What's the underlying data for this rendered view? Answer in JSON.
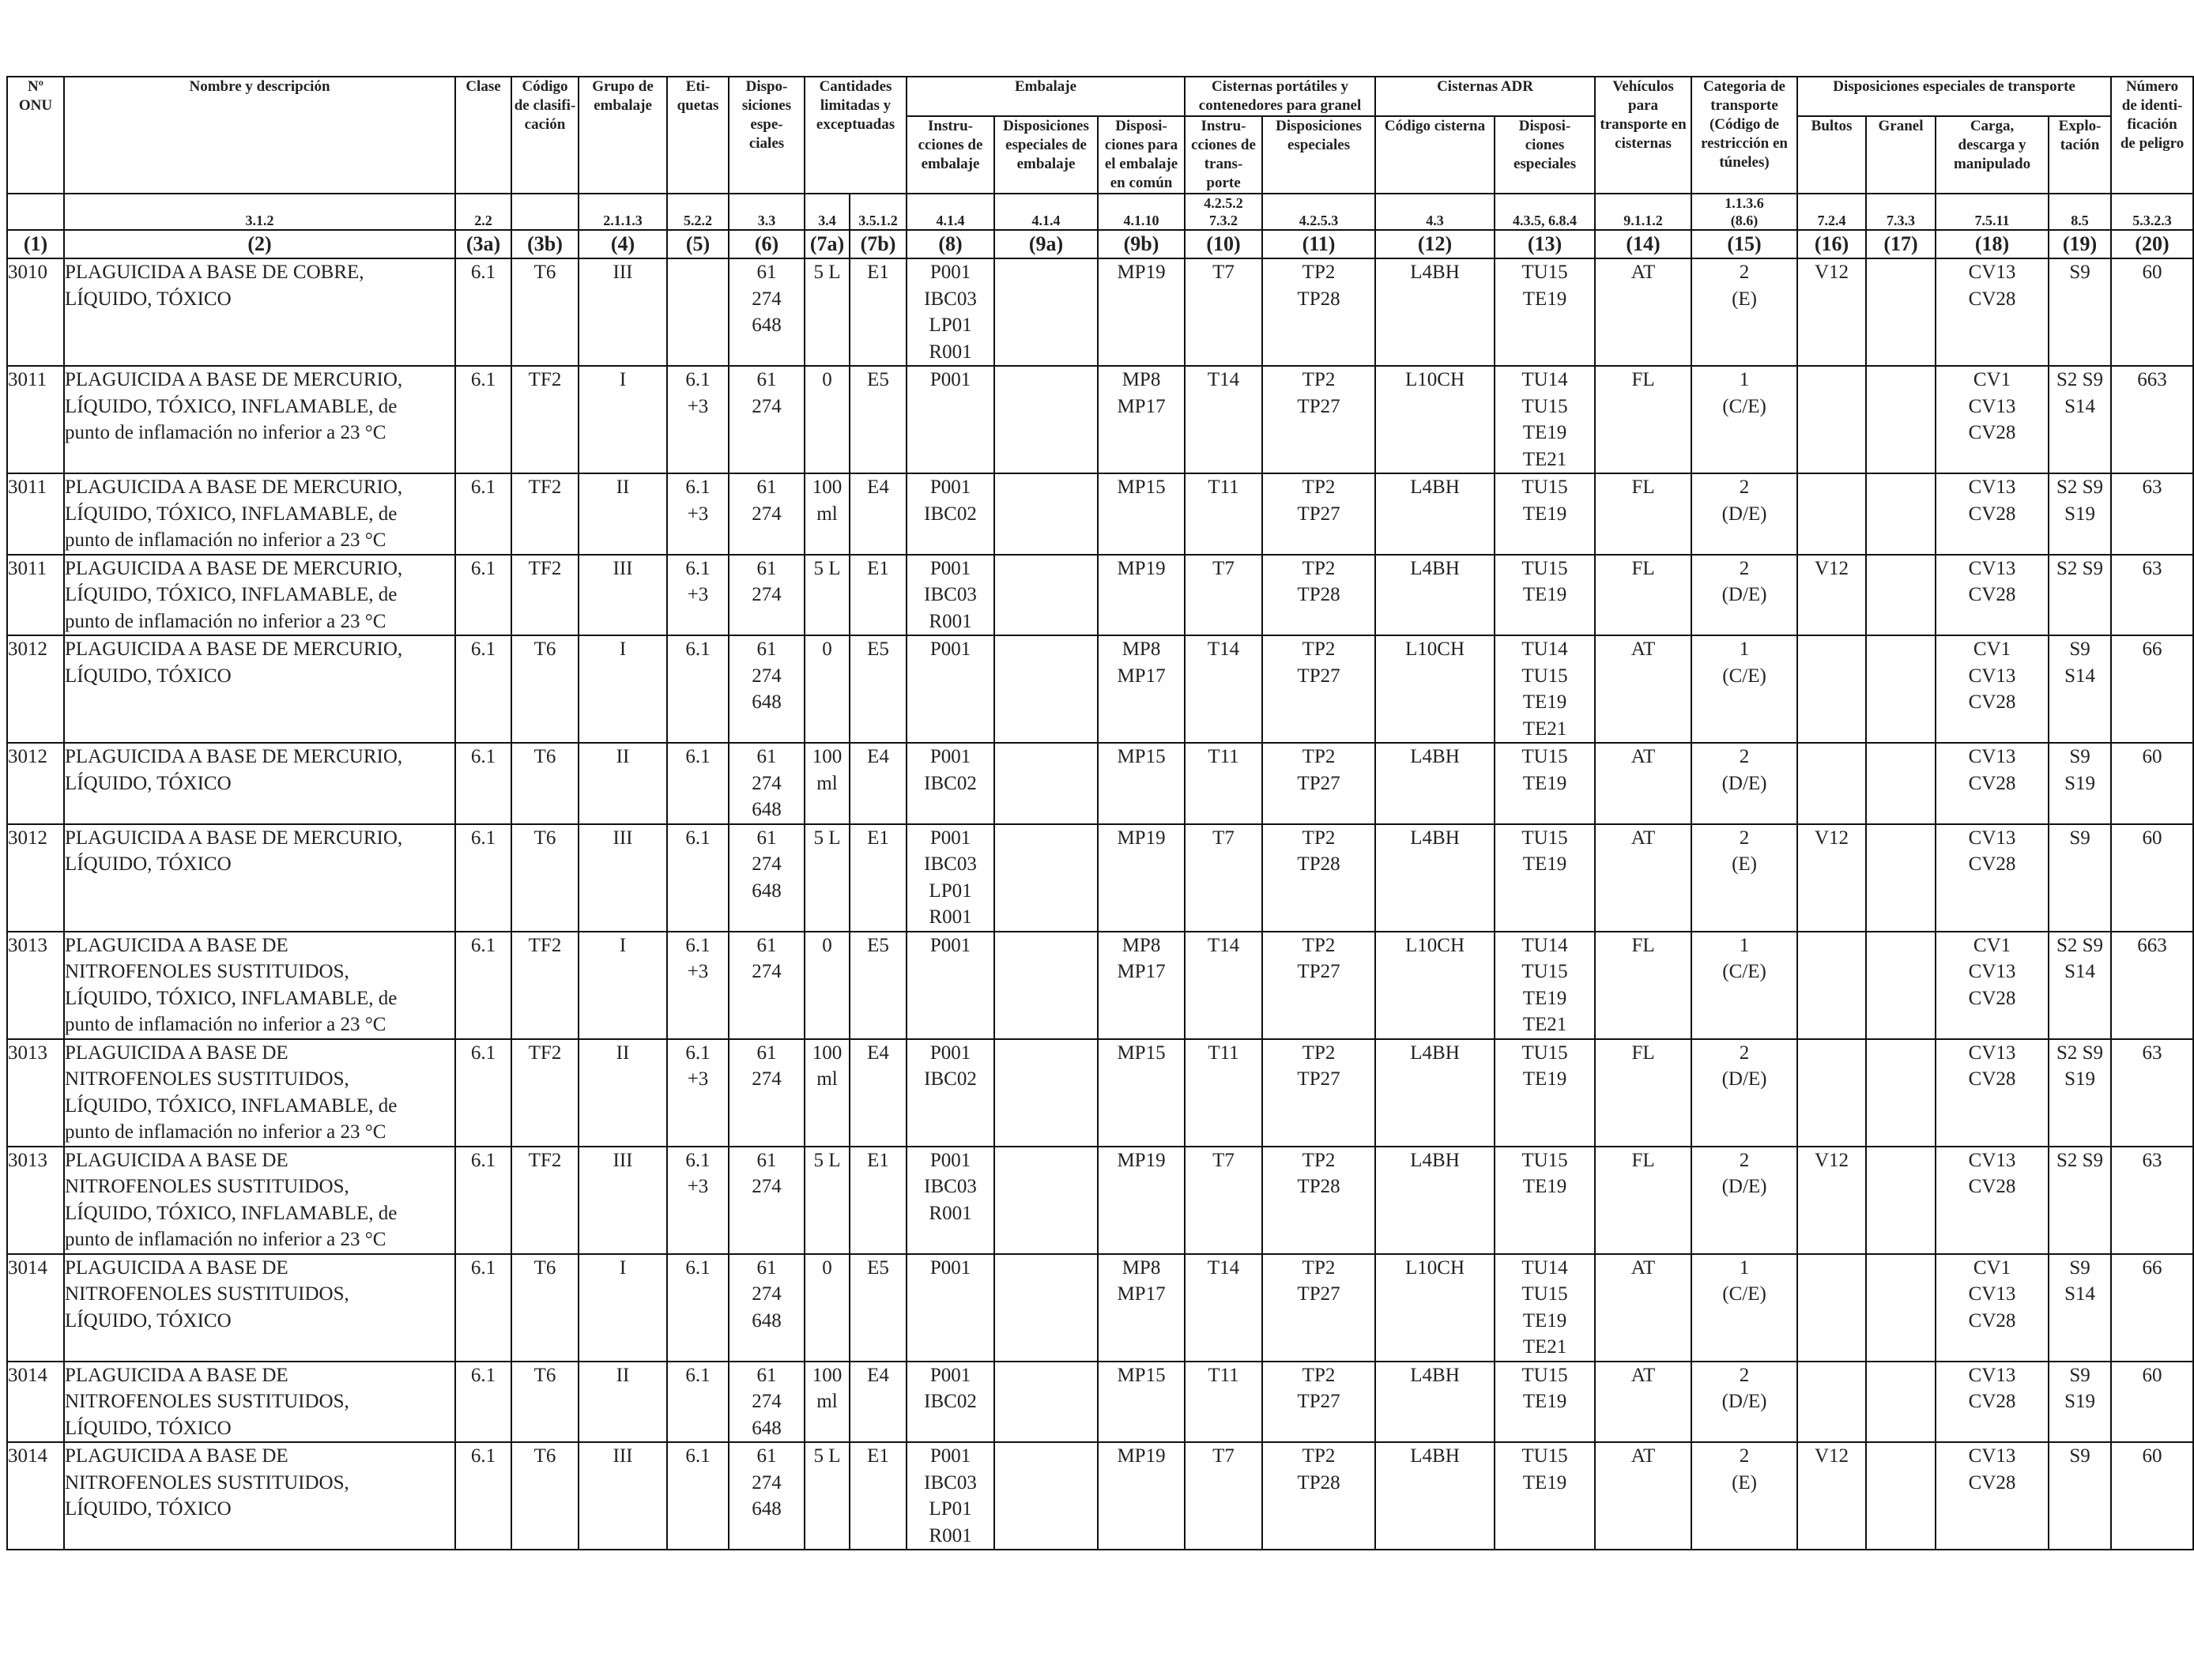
{
  "table": {
    "headers": {
      "un_no": [
        "Nº",
        "ONU"
      ],
      "name": [
        "Nombre y descripción"
      ],
      "class": [
        "Clase"
      ],
      "class_code": [
        "Código",
        "de clasifi-",
        "cación"
      ],
      "packing_group": [
        "Grupo de",
        "embalaje"
      ],
      "labels": [
        "Eti-",
        "quetas"
      ],
      "special_provisions": [
        "Dispo-",
        "siciones",
        "espe-",
        "ciales"
      ],
      "limited_qty": [
        "Cantidades",
        "limitadas y",
        "exceptuadas"
      ],
      "packaging": [
        "Embalaje"
      ],
      "pack_instr": [
        "Instru-",
        "cciones de",
        "embalaje"
      ],
      "pack_special": [
        "Disposiciones",
        "especiales de",
        "embalaje"
      ],
      "mixed_pack": [
        "Disposi-",
        "ciones para",
        "el embalaje",
        "en común"
      ],
      "portable_tanks": [
        "Cisternas portátiles y",
        "contenedores para granel"
      ],
      "pt_instr": [
        "Instru-",
        "cciones de",
        "trans-",
        "porte"
      ],
      "pt_special": [
        "Disposiciones",
        "especiales"
      ],
      "adr_tanks": [
        "Cisternas ADR"
      ],
      "tank_code": [
        "Código cisterna"
      ],
      "tank_special": [
        "Disposi-",
        "ciones",
        "especiales"
      ],
      "vehicle": [
        "Vehículos",
        "para",
        "transporte en",
        "cisternas"
      ],
      "transport_cat": [
        "Categoria de",
        "transporte",
        "(Código de",
        "restricción en",
        "túneles)"
      ],
      "special_transport": [
        "Disposiciones especiales de transporte"
      ],
      "packages": [
        "Bultos"
      ],
      "bulk": [
        "Granel"
      ],
      "loading": [
        "Carga,",
        "descarga y",
        "manipulado"
      ],
      "operation": [
        "Explo-",
        "tación"
      ],
      "hazard_id": [
        "Número",
        "de identi-",
        "ficación",
        "de peligro"
      ]
    },
    "refs": {
      "name": "3.1.2",
      "class": "2.2",
      "packing_group": "2.1.1.3",
      "labels": "5.2.2",
      "sp": "3.3",
      "lq": "3.4",
      "eq": "3.5.1.2",
      "pack_instr": "4.1.4",
      "pack_special": "4.1.4",
      "mixed": "4.1.10",
      "pt_instr": [
        "4.2.5.2",
        "7.3.2"
      ],
      "pt_special": "4.2.5.3",
      "tank_code": "4.3",
      "tank_special": "4.3.5, 6.8.4",
      "vehicle": "9.1.1.2",
      "transport_cat": [
        "1.1.3.6",
        "(8.6)"
      ],
      "packages": "7.2.4",
      "bulk": "7.3.3",
      "loading": "7.5.11",
      "operation": "8.5",
      "hazard": "5.3.2.3"
    },
    "column_numbers": [
      "(1)",
      "(2)",
      "(3a)",
      "(3b)",
      "(4)",
      "(5)",
      "(6)",
      "(7a)",
      "(7b)",
      "(8)",
      "(9a)",
      "(9b)",
      "(10)",
      "(11)",
      "(12)",
      "(13)",
      "(14)",
      "(15)",
      "(16)",
      "(17)",
      "(18)",
      "(19)",
      "(20)"
    ],
    "rows": [
      {
        "un": "3010",
        "name": [
          "PLAGUICIDA A BASE DE COBRE,",
          "LÍQUIDO, TÓXICO"
        ],
        "c3a": "6.1",
        "c3b": "T6",
        "c4": "III",
        "c5": [],
        "c6": [
          "61",
          "274",
          "648"
        ],
        "c7a": [
          "5 L"
        ],
        "c7b": "E1",
        "c8": [
          "P001",
          "IBC03",
          "LP01",
          "R001"
        ],
        "c9a": "",
        "c9b": "MP19",
        "c10": "T7",
        "c11": [
          "TP2",
          "TP28"
        ],
        "c12": "L4BH",
        "c13": [
          "TU15",
          "TE19"
        ],
        "c14": "AT",
        "c15": [
          "2",
          "(E)"
        ],
        "c16": "V12",
        "c17": "",
        "c18": [
          "CV13",
          "CV28"
        ],
        "c19": [
          "S9"
        ],
        "c20": "60"
      },
      {
        "un": "3011",
        "name": [
          "PLAGUICIDA A BASE DE MERCURIO,",
          "LÍQUIDO, TÓXICO, INFLAMABLE, de",
          "punto de inflamación no inferior a 23 °C"
        ],
        "c3a": "6.1",
        "c3b": "TF2",
        "c4": "I",
        "c5": [
          "6.1",
          "+3"
        ],
        "c6": [
          "61",
          "274"
        ],
        "c7a": [
          "0"
        ],
        "c7b": "E5",
        "c8": [
          "P001"
        ],
        "c9a": "",
        "c9b": "MP8\nMP17",
        "c10": "T14",
        "c11": [
          "TP2",
          "TP27"
        ],
        "c12": "L10CH",
        "c13": [
          "TU14",
          "TU15",
          "TE19",
          "TE21"
        ],
        "c14": "FL",
        "c15": [
          "1",
          "(C/E)"
        ],
        "c16": "",
        "c17": "",
        "c18": [
          "CV1",
          "CV13",
          "CV28"
        ],
        "c19": [
          "S2 S9",
          "S14"
        ],
        "c20": "663"
      },
      {
        "un": "3011",
        "name": [
          "PLAGUICIDA A BASE DE MERCURIO,",
          "LÍQUIDO, TÓXICO, INFLAMABLE, de",
          "punto de inflamación no inferior a 23 °C"
        ],
        "c3a": "6.1",
        "c3b": "TF2",
        "c4": "II",
        "c5": [
          "6.1",
          "+3"
        ],
        "c6": [
          "61",
          "274"
        ],
        "c7a": [
          "100",
          "ml"
        ],
        "c7b": "E4",
        "c8": [
          "P001",
          "IBC02"
        ],
        "c9a": "",
        "c9b": "MP15",
        "c10": "T11",
        "c11": [
          "TP2",
          "TP27"
        ],
        "c12": "L4BH",
        "c13": [
          "TU15",
          "TE19"
        ],
        "c14": "FL",
        "c15": [
          "2",
          "(D/E)"
        ],
        "c16": "",
        "c17": "",
        "c18": [
          "CV13",
          "CV28"
        ],
        "c19": [
          "S2 S9",
          "S19"
        ],
        "c20": "63"
      },
      {
        "un": "3011",
        "name": [
          "PLAGUICIDA A BASE DE MERCURIO,",
          "LÍQUIDO, TÓXICO, INFLAMABLE, de",
          "punto de inflamación no inferior a 23 °C"
        ],
        "c3a": "6.1",
        "c3b": "TF2",
        "c4": "III",
        "c5": [
          "6.1",
          "+3"
        ],
        "c6": [
          "61",
          "274"
        ],
        "c7a": [
          "5 L"
        ],
        "c7b": "E1",
        "c8": [
          "P001",
          "IBC03",
          "R001"
        ],
        "c9a": "",
        "c9b": "MP19",
        "c10": "T7",
        "c11": [
          "TP2",
          "TP28"
        ],
        "c12": "L4BH",
        "c13": [
          "TU15",
          "TE19"
        ],
        "c14": "FL",
        "c15": [
          "2",
          "(D/E)"
        ],
        "c16": "V12",
        "c17": "",
        "c18": [
          "CV13",
          "CV28"
        ],
        "c19": [
          "S2 S9"
        ],
        "c20": "63"
      },
      {
        "un": "3012",
        "name": [
          "PLAGUICIDA A BASE DE MERCURIO,",
          "LÍQUIDO, TÓXICO"
        ],
        "c3a": "6.1",
        "c3b": "T6",
        "c4": "I",
        "c5": [
          "6.1"
        ],
        "c6": [
          "61",
          "274",
          "648"
        ],
        "c7a": [
          "0"
        ],
        "c7b": "E5",
        "c8": [
          "P001"
        ],
        "c9a": "",
        "c9b": "MP8\nMP17",
        "c10": "T14",
        "c11": [
          "TP2",
          "TP27"
        ],
        "c12": "L10CH",
        "c13": [
          "TU14",
          "TU15",
          "TE19",
          "TE21"
        ],
        "c14": "AT",
        "c15": [
          "1",
          "(C/E)"
        ],
        "c16": "",
        "c17": "",
        "c18": [
          "CV1",
          "CV13",
          "CV28"
        ],
        "c19": [
          "S9",
          "S14"
        ],
        "c20": "66"
      },
      {
        "un": "3012",
        "name": [
          "PLAGUICIDA A BASE DE MERCURIO,",
          "LÍQUIDO, TÓXICO"
        ],
        "c3a": "6.1",
        "c3b": "T6",
        "c4": "II",
        "c5": [
          "6.1"
        ],
        "c6": [
          "61",
          "274",
          "648"
        ],
        "c7a": [
          "100",
          "ml"
        ],
        "c7b": "E4",
        "c8": [
          "P001",
          "IBC02"
        ],
        "c9a": "",
        "c9b": "MP15",
        "c10": "T11",
        "c11": [
          "TP2",
          "TP27"
        ],
        "c12": "L4BH",
        "c13": [
          "TU15",
          "TE19"
        ],
        "c14": "AT",
        "c15": [
          "2",
          "(D/E)"
        ],
        "c16": "",
        "c17": "",
        "c18": [
          "CV13",
          "CV28"
        ],
        "c19": [
          "S9",
          "S19"
        ],
        "c20": "60"
      },
      {
        "un": "3012",
        "name": [
          "PLAGUICIDA A BASE DE MERCURIO,",
          "LÍQUIDO, TÓXICO"
        ],
        "c3a": "6.1",
        "c3b": "T6",
        "c4": "III",
        "c5": [
          "6.1"
        ],
        "c6": [
          "61",
          "274",
          "648"
        ],
        "c7a": [
          "5 L"
        ],
        "c7b": "E1",
        "c8": [
          "P001",
          "IBC03",
          "LP01",
          "R001"
        ],
        "c9a": "",
        "c9b": "MP19",
        "c10": "T7",
        "c11": [
          "TP2",
          "TP28"
        ],
        "c12": "L4BH",
        "c13": [
          "TU15",
          "TE19"
        ],
        "c14": "AT",
        "c15": [
          "2",
          "(E)"
        ],
        "c16": "V12",
        "c17": "",
        "c18": [
          "CV13",
          "CV28"
        ],
        "c19": [
          "S9"
        ],
        "c20": "60"
      },
      {
        "un": "3013",
        "name": [
          "PLAGUICIDA A BASE DE",
          "NITROFENOLES SUSTITUIDOS,",
          "LÍQUIDO, TÓXICO, INFLAMABLE, de",
          "punto de inflamación no inferior a 23 °C"
        ],
        "c3a": "6.1",
        "c3b": "TF2",
        "c4": "I",
        "c5": [
          "6.1",
          "+3"
        ],
        "c6": [
          "61",
          "274"
        ],
        "c7a": [
          "0"
        ],
        "c7b": "E5",
        "c8": [
          "P001"
        ],
        "c9a": "",
        "c9b": "MP8\nMP17",
        "c10": "T14",
        "c11": [
          "TP2",
          "TP27"
        ],
        "c12": "L10CH",
        "c13": [
          "TU14",
          "TU15",
          "TE19",
          "TE21"
        ],
        "c14": "FL",
        "c15": [
          "1",
          "(C/E)"
        ],
        "c16": "",
        "c17": "",
        "c18": [
          "CV1",
          "CV13",
          "CV28"
        ],
        "c19": [
          "S2 S9",
          "S14"
        ],
        "c20": "663"
      },
      {
        "un": "3013",
        "name": [
          "PLAGUICIDA A BASE DE",
          "NITROFENOLES SUSTITUIDOS,",
          "LÍQUIDO, TÓXICO, INFLAMABLE, de",
          "punto de inflamación no inferior a 23 °C"
        ],
        "c3a": "6.1",
        "c3b": "TF2",
        "c4": "II",
        "c5": [
          "6.1",
          "+3"
        ],
        "c6": [
          "61",
          "274"
        ],
        "c7a": [
          "100",
          "ml"
        ],
        "c7b": "E4",
        "c8": [
          "P001",
          "IBC02"
        ],
        "c9a": "",
        "c9b": "MP15",
        "c10": "T11",
        "c11": [
          "TP2",
          "TP27"
        ],
        "c12": "L4BH",
        "c13": [
          "TU15",
          "TE19"
        ],
        "c14": "FL",
        "c15": [
          "2",
          "(D/E)"
        ],
        "c16": "",
        "c17": "",
        "c18": [
          "CV13",
          "CV28"
        ],
        "c19": [
          "S2 S9",
          "S19"
        ],
        "c20": "63"
      },
      {
        "un": "3013",
        "name": [
          "PLAGUICIDA A BASE DE",
          "NITROFENOLES SUSTITUIDOS,",
          "LÍQUIDO, TÓXICO, INFLAMABLE, de",
          "punto de inflamación no inferior a 23 °C"
        ],
        "c3a": "6.1",
        "c3b": "TF2",
        "c4": "III",
        "c5": [
          "6.1",
          "+3"
        ],
        "c6": [
          "61",
          "274"
        ],
        "c7a": [
          "5 L"
        ],
        "c7b": "E1",
        "c8": [
          "P001",
          "IBC03",
          "R001"
        ],
        "c9a": "",
        "c9b": "MP19",
        "c10": "T7",
        "c11": [
          "TP2",
          "TP28"
        ],
        "c12": "L4BH",
        "c13": [
          "TU15",
          "TE19"
        ],
        "c14": "FL",
        "c15": [
          "2",
          "(D/E)"
        ],
        "c16": "V12",
        "c17": "",
        "c18": [
          "CV13",
          "CV28"
        ],
        "c19": [
          "S2 S9"
        ],
        "c20": "63"
      },
      {
        "un": "3014",
        "name": [
          "PLAGUICIDA A BASE DE",
          "NITROFENOLES SUSTITUIDOS,",
          "LÍQUIDO, TÓXICO"
        ],
        "c3a": "6.1",
        "c3b": "T6",
        "c4": "I",
        "c5": [
          "6.1"
        ],
        "c6": [
          "61",
          "274",
          "648"
        ],
        "c7a": [
          "0"
        ],
        "c7b": "E5",
        "c8": [
          "P001"
        ],
        "c9a": "",
        "c9b": "MP8\nMP17",
        "c10": "T14",
        "c11": [
          "TP2",
          "TP27"
        ],
        "c12": "L10CH",
        "c13": [
          "TU14",
          "TU15",
          "TE19",
          "TE21"
        ],
        "c14": "AT",
        "c15": [
          "1",
          "(C/E)"
        ],
        "c16": "",
        "c17": "",
        "c18": [
          "CV1",
          "CV13",
          "CV28"
        ],
        "c19": [
          "S9",
          "S14"
        ],
        "c20": "66"
      },
      {
        "un": "3014",
        "name": [
          "PLAGUICIDA A BASE DE",
          "NITROFENOLES SUSTITUIDOS,",
          "LÍQUIDO, TÓXICO"
        ],
        "c3a": "6.1",
        "c3b": "T6",
        "c4": "II",
        "c5": [
          "6.1"
        ],
        "c6": [
          "61",
          "274",
          "648"
        ],
        "c7a": [
          "100",
          "ml"
        ],
        "c7b": "E4",
        "c8": [
          "P001",
          "IBC02"
        ],
        "c9a": "",
        "c9b": "MP15",
        "c10": "T11",
        "c11": [
          "TP2",
          "TP27"
        ],
        "c12": "L4BH",
        "c13": [
          "TU15",
          "TE19"
        ],
        "c14": "AT",
        "c15": [
          "2",
          "(D/E)"
        ],
        "c16": "",
        "c17": "",
        "c18": [
          "CV13",
          "CV28"
        ],
        "c19": [
          "S9",
          "S19"
        ],
        "c20": "60"
      },
      {
        "un": "3014",
        "name": [
          "PLAGUICIDA A BASE DE",
          "NITROFENOLES SUSTITUIDOS,",
          "LÍQUIDO, TÓXICO"
        ],
        "c3a": "6.1",
        "c3b": "T6",
        "c4": "III",
        "c5": [
          "6.1"
        ],
        "c6": [
          "61",
          "274",
          "648"
        ],
        "c7a": [
          "5 L"
        ],
        "c7b": "E1",
        "c8": [
          "P001",
          "IBC03",
          "LP01",
          "R001"
        ],
        "c9a": "",
        "c9b": "MP19",
        "c10": "T7",
        "c11": [
          "TP2",
          "TP28"
        ],
        "c12": "L4BH",
        "c13": [
          "TU15",
          "TE19"
        ],
        "c14": "AT",
        "c15": [
          "2",
          "(E)"
        ],
        "c16": "V12",
        "c17": "",
        "c18": [
          "CV13",
          "CV28"
        ],
        "c19": [
          "S9"
        ],
        "c20": "60"
      }
    ]
  }
}
